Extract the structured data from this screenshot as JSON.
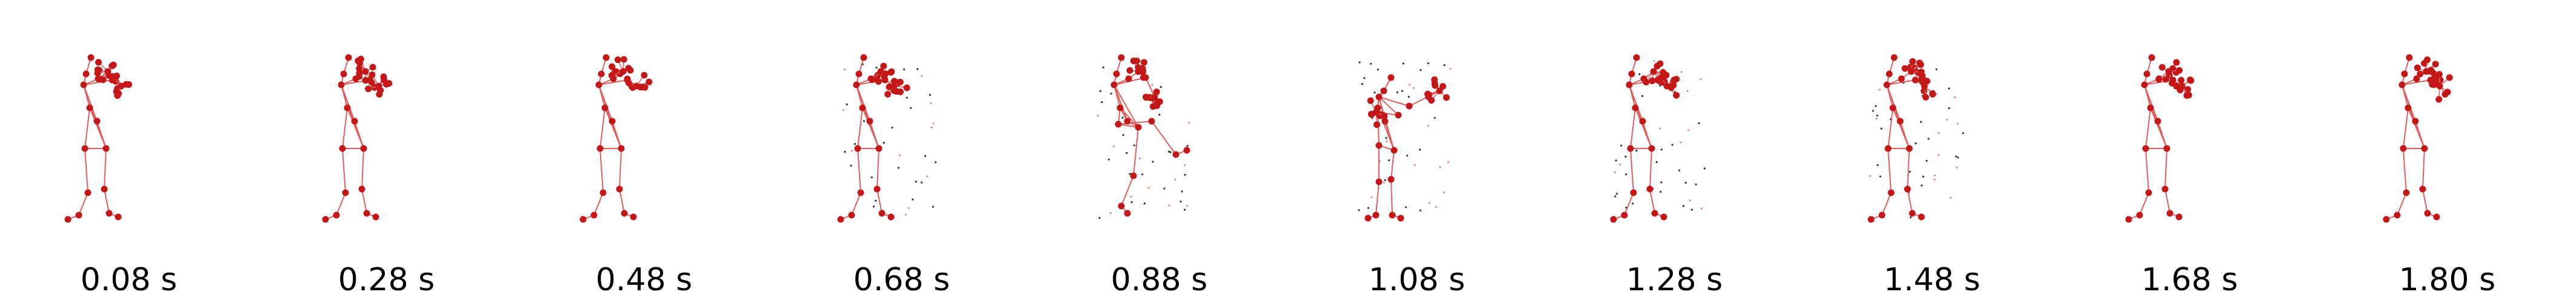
{
  "colors": {
    "joint": "#c41818",
    "bone": "#e06060",
    "trail": "#333333",
    "trail_red": "#e88888"
  },
  "frames": [
    {
      "time_label": "0.08 s",
      "pose": "standing-arms-raised"
    },
    {
      "time_label": "0.28 s",
      "pose": "standing-arms-raised"
    },
    {
      "time_label": "0.48 s",
      "pose": "standing-arms-raised"
    },
    {
      "time_label": "0.68 s",
      "pose": "standing-arms-raised-motion"
    },
    {
      "time_label": "0.88 s",
      "pose": "leg-kick"
    },
    {
      "time_label": "1.08 s",
      "pose": "arm-extended-punch"
    },
    {
      "time_label": "1.28 s",
      "pose": "standing-arms-raised-motion"
    },
    {
      "time_label": "1.48 s",
      "pose": "standing-arms-raised-motion"
    },
    {
      "time_label": "1.68 s",
      "pose": "standing-arms-raised"
    },
    {
      "time_label": "1.80 s",
      "pose": "standing-arms-raised"
    }
  ]
}
